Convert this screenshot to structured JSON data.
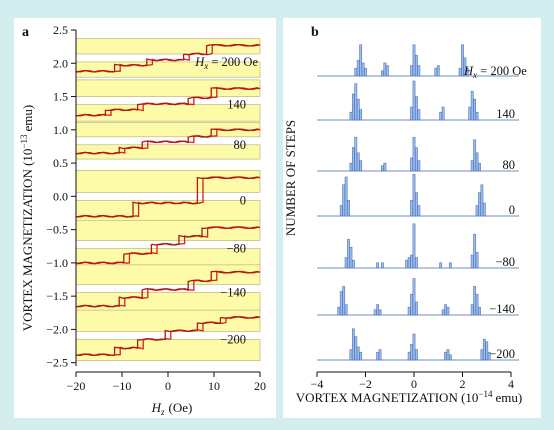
{
  "chart_data": [
    {
      "panel": "a",
      "type": "line",
      "xlabel_main": "H",
      "xlabel_sub": "z",
      "xlabel_unit": "(Oe)",
      "ylabel": "VORTEX MAGNETIZATION (10",
      "ylabel_exp": "−13",
      "ylabel_unit": "emu)",
      "xlim": [
        -20,
        20
      ],
      "ylim": [
        -2.55,
        2.5
      ],
      "xticks": [
        -20,
        -10,
        0,
        10,
        20
      ],
      "xtick_labels": [
        "−20",
        "−10",
        "0",
        "10",
        "20"
      ],
      "yticks": [
        2.5,
        2.0,
        1.5,
        1.0,
        0.5,
        0.0,
        -0.5,
        -1.0,
        -1.5,
        -2.0,
        -2.5
      ],
      "ytick_labels": [
        "2.5",
        "2.0",
        "1.5",
        "1.0",
        "0.5",
        "0.0",
        "−0.5",
        "−1.0",
        "−1.5",
        "−2.0",
        "−2.5"
      ],
      "series_labels_prefix_main": "H",
      "series_labels_prefix_sub": "x",
      "series_labels_prefix_eq": " = ",
      "series_labels_unit": " Oe",
      "series": [
        {
          "label": "200",
          "band": [
            1.88,
            2.28
          ],
          "steps": [
            {
              "x": -11,
              "y": 1.97
            },
            {
              "x": -4,
              "y": 2.05
            },
            {
              "x": 4,
              "y": 2.14
            },
            {
              "x": 9,
              "y": 2.27
            }
          ],
          "start": 1.88
        },
        {
          "label": "140",
          "band": [
            1.22,
            1.66
          ],
          "steps": [
            {
              "x": -13,
              "y": 1.3
            },
            {
              "x": -6,
              "y": 1.39
            },
            {
              "x": 5,
              "y": 1.48
            },
            {
              "x": 10,
              "y": 1.62
            }
          ],
          "start": 1.22
        },
        {
          "label": "80",
          "band": [
            0.65,
            1.02
          ],
          "steps": [
            {
              "x": -10,
              "y": 0.73
            },
            {
              "x": -5,
              "y": 0.82
            },
            {
              "x": 5,
              "y": 0.9
            },
            {
              "x": 10,
              "y": 1.0
            }
          ],
          "start": 0.65
        },
        {
          "label": "0",
          "band": [
            -0.3,
            0.3
          ],
          "steps": [
            {
              "x": -7,
              "y": -0.1
            },
            {
              "x": 7,
              "y": 0.28
            }
          ],
          "start": -0.3
        },
        {
          "label": "−80",
          "band": [
            -1.0,
            -0.45
          ],
          "steps": [
            {
              "x": -9,
              "y": -0.86
            },
            {
              "x": -3,
              "y": -0.72
            },
            {
              "x": 3,
              "y": -0.6
            },
            {
              "x": 8,
              "y": -0.47
            }
          ],
          "start": -1.0
        },
        {
          "label": "−140",
          "band": [
            -1.65,
            -1.12
          ],
          "steps": [
            {
              "x": -10,
              "y": -1.52
            },
            {
              "x": -5,
              "y": -1.4
            },
            {
              "x": 5,
              "y": -1.27
            },
            {
              "x": 10,
              "y": -1.14
            }
          ],
          "start": -1.65
        },
        {
          "label": "−200",
          "band": [
            -2.38,
            -1.8
          ],
          "steps": [
            {
              "x": -11,
              "y": -2.28
            },
            {
              "x": -6,
              "y": -2.15
            },
            {
              "x": 0,
              "y": -2.02
            },
            {
              "x": 7,
              "y": -1.9
            },
            {
              "x": 12,
              "y": -1.82
            }
          ],
          "start": -2.38
        }
      ]
    },
    {
      "panel": "b",
      "type": "bar",
      "xlabel": "VORTEX MAGNETIZATION (10",
      "xlabel_exp": "−14",
      "xlabel_unit": "emu)",
      "ylabel": "NUMBER OF STEPS",
      "xlim": [
        -4,
        4
      ],
      "xticks": [
        -4,
        -2,
        0,
        2,
        4
      ],
      "xtick_labels": [
        "−4",
        "−2",
        "0",
        "2",
        "4"
      ],
      "series_labels_prefix_main": "H",
      "series_labels_prefix_sub": "x",
      "series_labels_prefix_eq": " = ",
      "series_labels_unit": " Oe",
      "series": [
        {
          "label": "200",
          "bars": [
            [
              -2.4,
              3
            ],
            [
              -2.3,
              6
            ],
            [
              -2.2,
              12
            ],
            [
              -2.1,
              5
            ],
            [
              -2.0,
              3
            ],
            [
              -1.3,
              2
            ],
            [
              -1.2,
              5
            ],
            [
              -1.1,
              4
            ],
            [
              -0.1,
              4
            ],
            [
              0.0,
              12
            ],
            [
              0.1,
              8
            ],
            [
              0.2,
              4
            ],
            [
              0.9,
              3
            ],
            [
              1.0,
              4
            ],
            [
              1.9,
              3
            ],
            [
              2.0,
              12
            ],
            [
              2.1,
              7
            ],
            [
              2.2,
              3
            ]
          ]
        },
        {
          "label": "140",
          "bars": [
            [
              -2.6,
              3
            ],
            [
              -2.5,
              10
            ],
            [
              -2.4,
              14
            ],
            [
              -2.3,
              8
            ],
            [
              -2.2,
              4
            ],
            [
              -0.1,
              5
            ],
            [
              0.0,
              15
            ],
            [
              0.1,
              9
            ],
            [
              0.2,
              4
            ],
            [
              1.1,
              3
            ],
            [
              1.2,
              5
            ],
            [
              2.3,
              5
            ],
            [
              2.4,
              11
            ],
            [
              2.5,
              8
            ],
            [
              2.6,
              3
            ]
          ]
        },
        {
          "label": "80",
          "bars": [
            [
              -2.6,
              3
            ],
            [
              -2.5,
              9
            ],
            [
              -2.4,
              13
            ],
            [
              -2.3,
              7
            ],
            [
              -2.2,
              4
            ],
            [
              -1.3,
              2
            ],
            [
              -1.2,
              3
            ],
            [
              -0.1,
              5
            ],
            [
              0.0,
              13
            ],
            [
              0.1,
              9
            ],
            [
              0.2,
              4
            ],
            [
              2.4,
              4
            ],
            [
              2.5,
              12
            ],
            [
              2.6,
              7
            ],
            [
              2.7,
              3
            ]
          ]
        },
        {
          "label": "0",
          "bars": [
            [
              -3.0,
              4
            ],
            [
              -2.9,
              12
            ],
            [
              -2.8,
              15
            ],
            [
              -2.7,
              6
            ],
            [
              -0.1,
              6
            ],
            [
              0.0,
              16
            ],
            [
              0.1,
              9
            ],
            [
              0.2,
              4
            ],
            [
              2.6,
              4
            ],
            [
              2.7,
              9
            ],
            [
              2.8,
              12
            ],
            [
              2.9,
              5
            ]
          ]
        },
        {
          "label": "−80",
          "bars": [
            [
              -2.8,
              4
            ],
            [
              -2.7,
              11
            ],
            [
              -2.6,
              8
            ],
            [
              -2.5,
              3
            ],
            [
              -1.5,
              2
            ],
            [
              -1.3,
              2
            ],
            [
              -0.3,
              3
            ],
            [
              -0.2,
              4
            ],
            [
              -0.1,
              5
            ],
            [
              0.0,
              17
            ],
            [
              0.1,
              4
            ],
            [
              1.1,
              2
            ],
            [
              1.5,
              2
            ],
            [
              2.4,
              5
            ],
            [
              2.5,
              13
            ],
            [
              2.6,
              6
            ]
          ]
        },
        {
          "label": "−140",
          "bars": [
            [
              -3.1,
              3
            ],
            [
              -3.0,
              9
            ],
            [
              -2.9,
              11
            ],
            [
              -2.8,
              4
            ],
            [
              -1.6,
              2
            ],
            [
              -1.5,
              4
            ],
            [
              -1.4,
              2
            ],
            [
              -0.2,
              3
            ],
            [
              -0.1,
              8
            ],
            [
              0.0,
              14
            ],
            [
              0.1,
              5
            ],
            [
              1.2,
              2
            ],
            [
              1.3,
              4
            ],
            [
              1.4,
              3
            ],
            [
              2.4,
              4
            ],
            [
              2.5,
              11
            ],
            [
              2.6,
              8
            ],
            [
              2.7,
              3
            ]
          ]
        },
        {
          "label": "−200",
          "bars": [
            [
              -2.6,
              4
            ],
            [
              -2.5,
              12
            ],
            [
              -2.4,
              9
            ],
            [
              -2.3,
              5
            ],
            [
              -2.2,
              3
            ],
            [
              -1.5,
              3
            ],
            [
              -1.4,
              4
            ],
            [
              -0.2,
              3
            ],
            [
              -0.1,
              6
            ],
            [
              0.0,
              10
            ],
            [
              0.1,
              4
            ],
            [
              1.3,
              3
            ],
            [
              1.4,
              4
            ],
            [
              1.5,
              2
            ],
            [
              2.8,
              4
            ],
            [
              2.9,
              8
            ],
            [
              3.0,
              7
            ],
            [
              3.1,
              3
            ]
          ]
        }
      ]
    }
  ]
}
